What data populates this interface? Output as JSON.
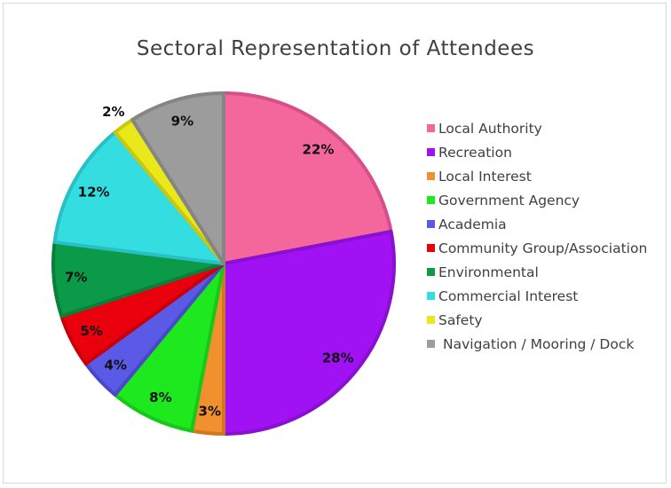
{
  "chart_data": {
    "type": "pie",
    "title": "Sectoral Representation of Attendees",
    "legend_position": "right",
    "categories": [
      "Local Authority",
      "Recreation",
      "Local Interest",
      "Government Agency",
      "Academia",
      "Community Group/Association",
      "Environmental",
      "Commercial Interest",
      "Safety",
      "Navigation / Mooring / Dock"
    ],
    "values": [
      22,
      28,
      3,
      8,
      4,
      5,
      7,
      12,
      2,
      9
    ],
    "data_labels": [
      "22%",
      "28%",
      "3%",
      "8%",
      "4%",
      "5%",
      "7%",
      "12%",
      "2%",
      "9%"
    ],
    "colors": [
      "#f4679c",
      "#a012f4",
      "#f0902e",
      "#1ee81e",
      "#5a5ae6",
      "#ea000c",
      "#0b9a48",
      "#33dde0",
      "#e8e81a",
      "#9c9c9c"
    ],
    "stroke_colors": [
      "#d5508a",
      "#8a10d0",
      "#d07820",
      "#18c818",
      "#4848c8",
      "#c80008",
      "#08803a",
      "#28c0c4",
      "#c8c810",
      "#858585"
    ],
    "unit": "percent"
  }
}
